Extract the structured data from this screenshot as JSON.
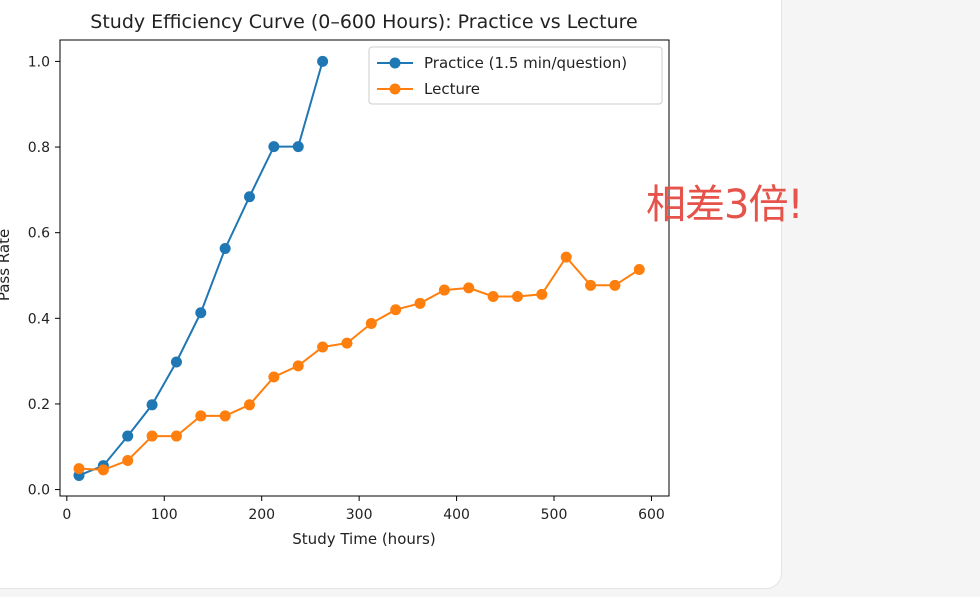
{
  "annotation": "相差3倍!",
  "chart_data": {
    "type": "line",
    "title": "Study Efficiency Curve (0–600 Hours): Practice vs Lecture",
    "xlabel": "Study Time (hours)",
    "ylabel": "Pass Rate",
    "xlim": [
      -7,
      618
    ],
    "ylim": [
      -0.015,
      1.05
    ],
    "xticks": [
      0,
      100,
      200,
      300,
      400,
      500,
      600
    ],
    "yticks": [
      0.0,
      0.2,
      0.4,
      0.6,
      0.8,
      1.0
    ],
    "xtick_labels": [
      "0",
      "100",
      "200",
      "300",
      "400",
      "500",
      "600"
    ],
    "ytick_labels": [
      "0.0",
      "0.2",
      "0.4",
      "0.6",
      "0.8",
      "1.0"
    ],
    "legend_position": "top-right",
    "grid": false,
    "series": [
      {
        "name": "Practice (1.5 min/question)",
        "color": "#1f77b4",
        "x": [
          12.5,
          37.5,
          62.5,
          87.5,
          112.5,
          137.5,
          162.5,
          187.5,
          212.5,
          237.5,
          262.5
        ],
        "y": [
          0.033,
          0.056,
          0.125,
          0.198,
          0.298,
          0.413,
          0.563,
          0.684,
          0.801,
          0.801,
          1.0
        ]
      },
      {
        "name": "Lecture",
        "color": "#ff7f0e",
        "x": [
          12.5,
          37.5,
          62.5,
          87.5,
          112.5,
          137.5,
          162.5,
          187.5,
          212.5,
          237.5,
          262.5,
          287.5,
          312.5,
          337.5,
          362.5,
          387.5,
          412.5,
          437.5,
          462.5,
          487.5,
          512.5,
          537.5,
          562.5,
          587.5
        ],
        "y": [
          0.049,
          0.046,
          0.068,
          0.125,
          0.125,
          0.172,
          0.172,
          0.198,
          0.263,
          0.289,
          0.333,
          0.342,
          0.388,
          0.42,
          0.435,
          0.466,
          0.471,
          0.451,
          0.451,
          0.456,
          0.543,
          0.477,
          0.477,
          0.514
        ]
      }
    ]
  }
}
